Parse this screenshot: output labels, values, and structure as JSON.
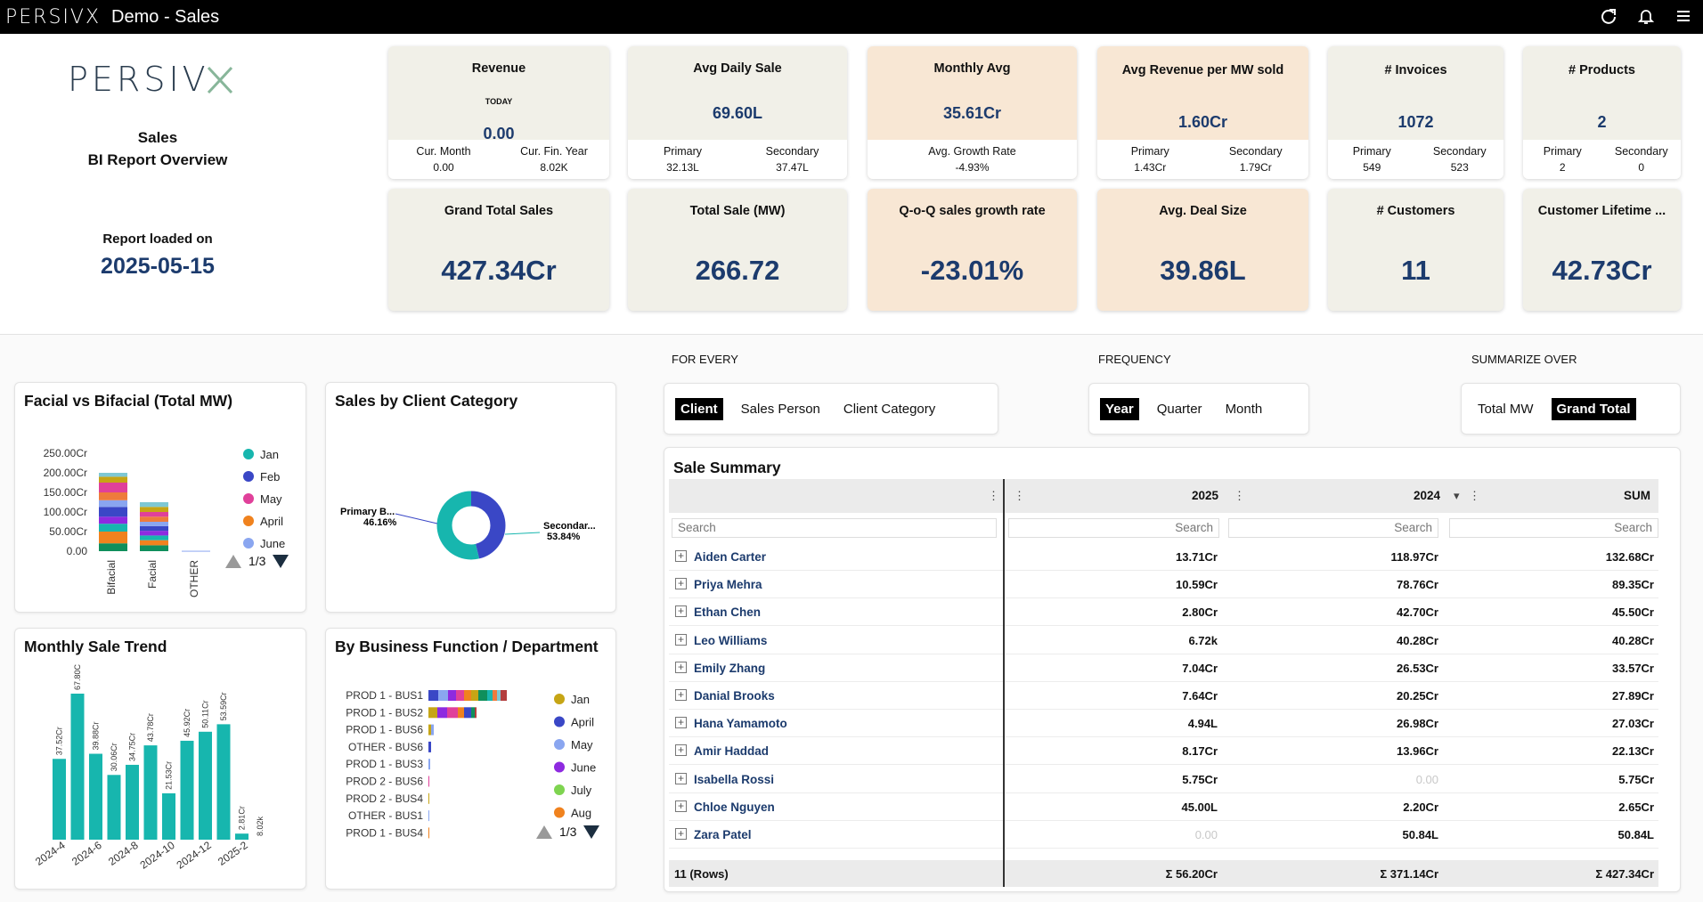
{
  "app": {
    "logo_text": "PERSIVX",
    "window_title": "Demo - Sales"
  },
  "brand": {
    "title_line1": "Sales",
    "title_line2": "BI Report Overview",
    "loaded_label": "Report loaded on",
    "loaded_date": "2025-05-15"
  },
  "kpis": {
    "revenue": {
      "title": "Revenue",
      "today_label": "TODAY",
      "value": "0.00",
      "left_label": "Cur. Month",
      "left_value": "0.00",
      "right_label": "Cur. Fin. Year",
      "right_value": "8.02K"
    },
    "avg_daily": {
      "title": "Avg Daily Sale",
      "value": "69.60L",
      "left_label": "Primary",
      "left_value": "32.13L",
      "right_label": "Secondary",
      "right_value": "37.47L"
    },
    "monthly_avg": {
      "title": "Monthly Avg",
      "value": "35.61Cr",
      "center_label": "Avg. Growth Rate",
      "center_value": "-4.93%"
    },
    "avg_rev_mw": {
      "title": "Avg Revenue per MW sold",
      "value": "1.60Cr",
      "left_label": "Primary",
      "left_value": "1.43Cr",
      "right_label": "Secondary",
      "right_value": "1.79Cr"
    },
    "invoices": {
      "title": "# Invoices",
      "value": "1072",
      "left_label": "Primary",
      "left_value": "549",
      "right_label": "Secondary",
      "right_value": "523"
    },
    "products": {
      "title": "# Products",
      "value": "2",
      "left_label": "Primary",
      "left_value": "2",
      "right_label": "Secondary",
      "right_value": "0"
    },
    "grand_total": {
      "title": "Grand Total Sales",
      "value": "427.34Cr"
    },
    "total_mw": {
      "title": "Total Sale (MW)",
      "value": "266.72"
    },
    "qoq": {
      "title": "Q-o-Q sales growth rate",
      "value": "-23.01%"
    },
    "deal_size": {
      "title": "Avg. Deal Size",
      "value": "39.86L"
    },
    "customers": {
      "title": "# Customers",
      "value": "11"
    },
    "clv": {
      "title": "Customer Lifetime ...",
      "value": "42.73Cr"
    }
  },
  "panels": {
    "facial": {
      "title": "Facial vs Bifacial (Total MW)",
      "pager": "1/3"
    },
    "client_cat": {
      "title": "Sales by Client Category"
    },
    "monthly": {
      "title": "Monthly Sale Trend"
    },
    "business": {
      "title": "By Business Function / Department",
      "pager": "1/3"
    }
  },
  "controls": {
    "for_every_label": "FOR EVERY",
    "for_every_options": [
      "Client",
      "Sales Person",
      "Client Category"
    ],
    "frequency_label": "FREQUENCY",
    "frequency_options": [
      "Year",
      "Quarter",
      "Month"
    ],
    "summarize_label": "SUMMARIZE OVER",
    "summarize_options": [
      "Total MW",
      "Grand Total"
    ]
  },
  "sale_summary": {
    "title": "Sale Summary",
    "columns": [
      "2025",
      "2024",
      "SUM"
    ],
    "search_placeholder": "Search",
    "rows": [
      {
        "name": "Aiden Carter",
        "c2025": "13.71Cr",
        "c2024": "118.97Cr",
        "sum": "132.68Cr"
      },
      {
        "name": "Priya Mehra",
        "c2025": "10.59Cr",
        "c2024": "78.76Cr",
        "sum": "89.35Cr"
      },
      {
        "name": "Ethan Chen",
        "c2025": "2.80Cr",
        "c2024": "42.70Cr",
        "sum": "45.50Cr"
      },
      {
        "name": "Leo Williams",
        "c2025": "6.72k",
        "c2024": "40.28Cr",
        "sum": "40.28Cr"
      },
      {
        "name": "Emily Zhang",
        "c2025": "7.04Cr",
        "c2024": "26.53Cr",
        "sum": "33.57Cr"
      },
      {
        "name": "Danial Brooks",
        "c2025": "7.64Cr",
        "c2024": "20.25Cr",
        "sum": "27.89Cr"
      },
      {
        "name": "Hana Yamamoto",
        "c2025": "4.94L",
        "c2024": "26.98Cr",
        "sum": "27.03Cr"
      },
      {
        "name": "Amir Haddad",
        "c2025": "8.17Cr",
        "c2024": "13.96Cr",
        "sum": "22.13Cr"
      },
      {
        "name": "Isabella Rossi",
        "c2025": "5.75Cr",
        "c2024": "0.00",
        "sum": "5.75Cr"
      },
      {
        "name": "Chloe Nguyen",
        "c2025": "45.00L",
        "c2024": "2.20Cr",
        "sum": "2.65Cr"
      },
      {
        "name": "Zara Patel",
        "c2025": "0.00",
        "c2024": "50.84L",
        "sum": "50.84L"
      }
    ],
    "footer": {
      "rows": "11 (Rows)",
      "c2025": "Σ 56.20Cr",
      "c2024": "Σ 371.14Cr",
      "sum": "Σ 427.34Cr"
    }
  },
  "chart_data": [
    {
      "type": "bar",
      "stacked": true,
      "categories": [
        "Bifacial",
        "Facial",
        "OTHER"
      ],
      "yticks": [
        "250.00Cr",
        "200.00Cr",
        "150.00Cr",
        "100.00Cr",
        "50.00Cr",
        "0.00"
      ],
      "ylim": [
        0,
        250
      ],
      "legend": [
        "Jan",
        "Feb",
        "May",
        "April",
        "June"
      ],
      "series_values": {
        "Bifacial": [
          20,
          30,
          20,
          18,
          25,
          17,
          20,
          25,
          15,
          10
        ],
        "Facial": [
          15,
          13,
          12,
          12,
          12,
          11,
          13,
          12,
          13,
          12
        ],
        "OTHER": [
          1
        ]
      }
    },
    {
      "type": "pie",
      "slices": [
        {
          "name": "Primary B...",
          "label": "46.16%",
          "value": 46.16,
          "color": "#3a47c6"
        },
        {
          "name": "Secondar...",
          "label": "53.84%",
          "value": 53.84,
          "color": "#17b6ae"
        }
      ]
    },
    {
      "type": "bar",
      "categories": [
        "2024-4",
        "2024-5",
        "2024-6",
        "2024-7",
        "2024-8",
        "2024-9",
        "2024-10",
        "2024-11",
        "2024-12",
        "2025-1",
        "2025-2",
        "2025-3"
      ],
      "x_tick_labels": [
        "2024-4",
        "2024-6",
        "2024-8",
        "2024-10",
        "2024-12",
        "2025-2"
      ],
      "values": [
        37.52,
        67.8,
        39.88,
        30.06,
        34.75,
        43.78,
        21.53,
        45.92,
        50.11,
        53.59,
        2.81,
        0.0008
      ],
      "labels": [
        "37.52Cr",
        "67.80C",
        "39.88Cr",
        "30.06Cr",
        "34.75Cr",
        "43.78Cr",
        "21.53Cr",
        "45.92Cr",
        "50.11Cr",
        "53.59Cr",
        "2.81Cr",
        "8.02k"
      ],
      "color": "#17b6ae"
    },
    {
      "type": "bar",
      "orientation": "horizontal",
      "stacked": true,
      "categories": [
        "PROD 1 - BUS1",
        "PROD 1 - BUS2",
        "PROD 1 - BUS6",
        "OTHER - BUS6",
        "PROD 1 - BUS3",
        "PROD 2 - BUS6",
        "PROD 2 - BUS4",
        "OTHER - BUS1",
        "PROD 1 - BUS4"
      ],
      "legend": [
        "Jan",
        "April",
        "May",
        "June",
        "July",
        "Aug"
      ],
      "segments": [
        [
          11,
          11,
          9,
          9,
          8,
          8,
          10,
          6,
          5,
          4,
          7
        ],
        [
          10,
          11,
          12,
          7,
          8,
          4,
          2
        ],
        [
          3,
          3
        ],
        [
          3
        ],
        [
          2
        ],
        [
          1
        ],
        [
          1
        ],
        [
          1
        ],
        [
          1
        ]
      ]
    }
  ],
  "colors": {
    "accent_blue": "#1c3b6d",
    "teal": "#17b6ae",
    "kpi_grey": "#f1f0e8",
    "kpi_peach": "#f8e7d4"
  }
}
